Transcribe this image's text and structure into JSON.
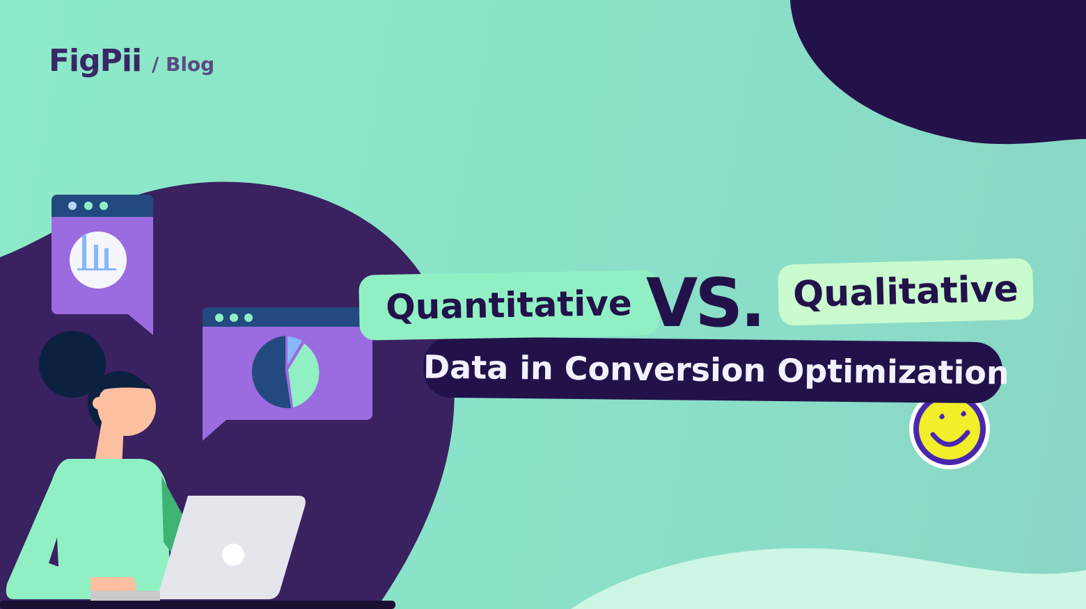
{
  "brand": {
    "logo": "FigPii",
    "section": "/ Blog"
  },
  "headline": {
    "left": "Quantitative",
    "vs": "VS.",
    "right": "Qualitative",
    "subtitle": "Data in Conversion Optimization"
  },
  "colors": {
    "background": "#8deac8",
    "dark_purple": "#23124a",
    "blob_purple": "#3a2160",
    "window_purple": "#9b6be0",
    "window_bar": "#224a80",
    "green_pill": "#90f0c4",
    "mint_pill": "#c9fbcf",
    "smiley": "#f3ee2a"
  },
  "icons": [
    "bar-chart-icon",
    "pie-chart-icon",
    "smiley-icon",
    "laptop-icon"
  ]
}
